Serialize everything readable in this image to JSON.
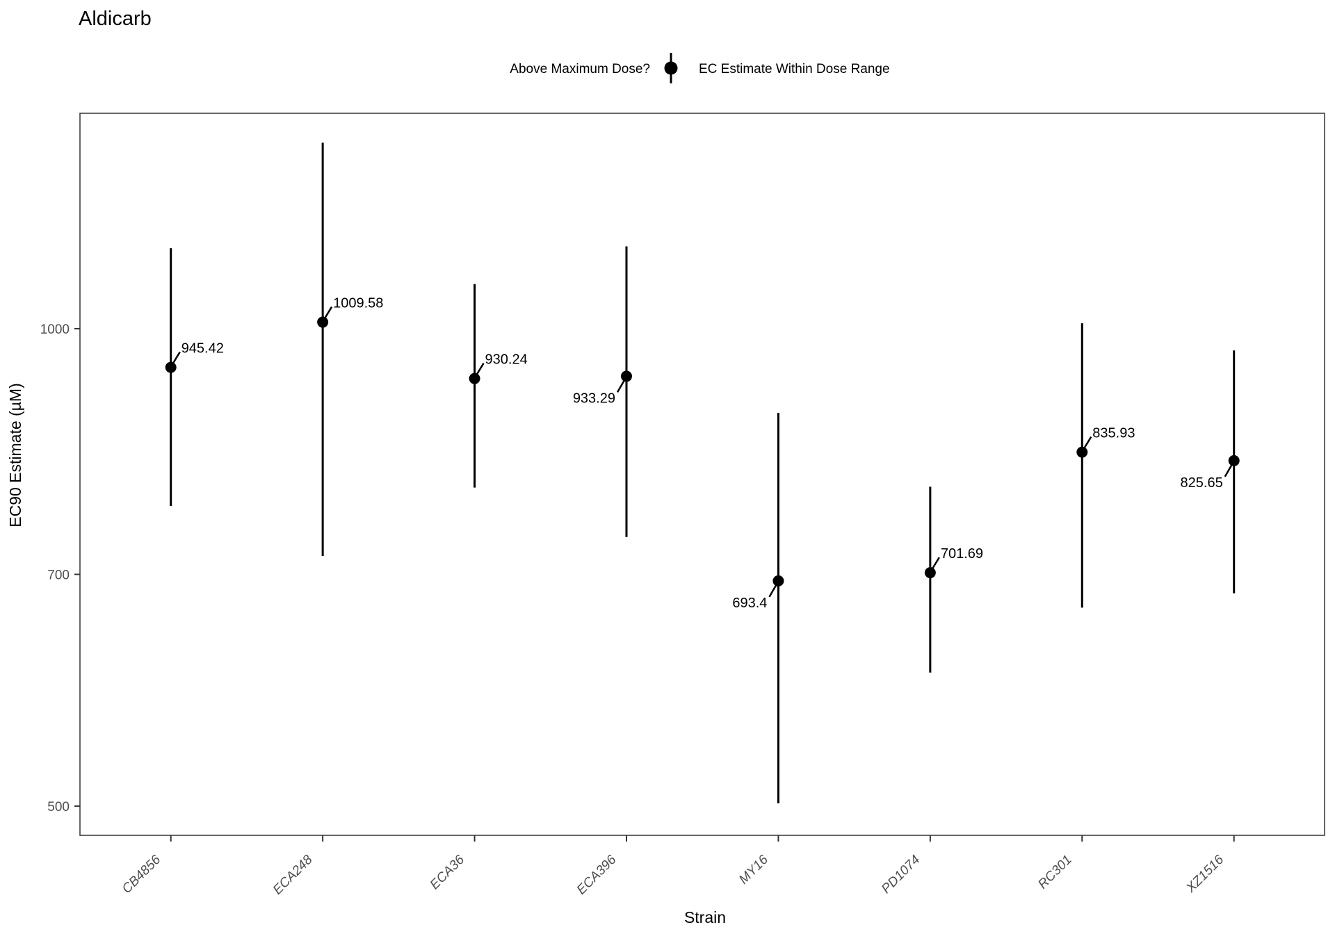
{
  "title": "Aldicarb",
  "legend": {
    "question_label": "Above Maximum Dose?",
    "item_label": "EC Estimate Within Dose Range"
  },
  "chart_data": {
    "type": "pointrange",
    "title": "Aldicarb",
    "xlabel": "Strain",
    "ylabel": "EC90 Estimate (µM)",
    "y_scale": "log10",
    "y_ticks": [
      1000,
      700,
      500
    ],
    "y_domain": [
      479,
      1367
    ],
    "grid": "off",
    "legend_position": "top",
    "categories": [
      "CB4856",
      "ECA248",
      "ECA36",
      "ECA396",
      "MY16",
      "PD1074",
      "RC301",
      "XZ1516"
    ],
    "points": [
      {
        "strain": "CB4856",
        "estimate": 945.42,
        "lower": 773,
        "upper": 1124,
        "label": "945.42",
        "label_side": "right-up"
      },
      {
        "strain": "ECA248",
        "estimate": 1009.58,
        "lower": 719,
        "upper": 1310,
        "label": "1009.58",
        "label_side": "right-up"
      },
      {
        "strain": "ECA36",
        "estimate": 930.24,
        "lower": 794,
        "upper": 1067,
        "label": "930.24",
        "label_side": "right-up"
      },
      {
        "strain": "ECA396",
        "estimate": 933.29,
        "lower": 739,
        "upper": 1127,
        "label": "933.29",
        "label_side": "left-down"
      },
      {
        "strain": "MY16",
        "estimate": 693.4,
        "lower": 502,
        "upper": 885,
        "label": "693.4",
        "label_side": "left-down"
      },
      {
        "strain": "PD1074",
        "estimate": 701.69,
        "lower": 607,
        "upper": 795,
        "label": "701.69",
        "label_side": "right-up"
      },
      {
        "strain": "RC301",
        "estimate": 835.93,
        "lower": 667,
        "upper": 1008,
        "label": "835.93",
        "label_side": "right-up"
      },
      {
        "strain": "XZ1516",
        "estimate": 825.65,
        "lower": 681,
        "upper": 969,
        "label": "825.65",
        "label_side": "left-down"
      }
    ],
    "colors": {
      "point": "#000000",
      "annotation": "#000000",
      "axis_tick_text": "#4d4d4d",
      "panel_border": "#333333",
      "tick_mark": "#333333",
      "background": "#ffffff"
    }
  }
}
